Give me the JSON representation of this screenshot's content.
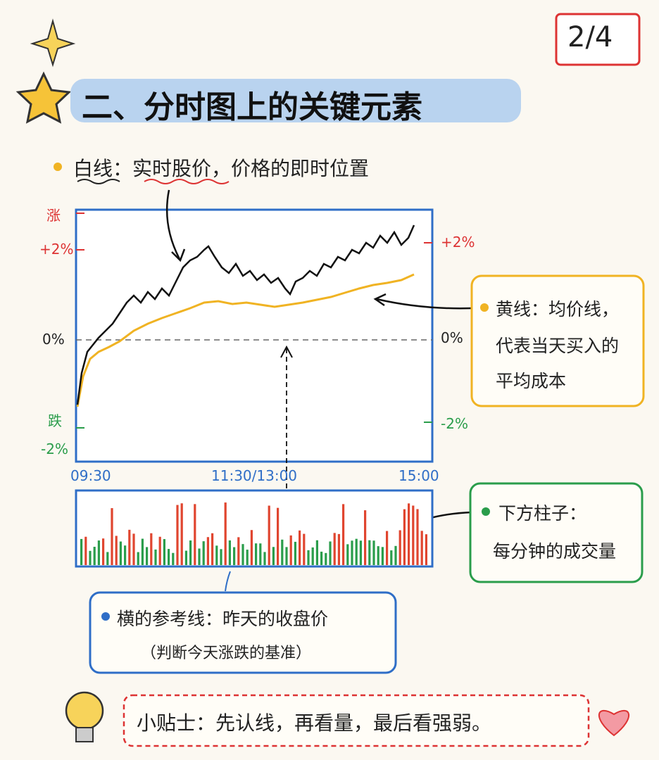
{
  "page_number": "2/4",
  "heading": "二、分时图上的关键元素",
  "white_line_note": "白线：实时股价，价格的即时位置",
  "left_axis": {
    "rise": "涨",
    "plus": "+2%",
    "zero": "0%",
    "fall": "跌",
    "minus": "-2%"
  },
  "right_axis": {
    "plus": "+2%",
    "zero": "0%",
    "minus": "-2%"
  },
  "time_axis": [
    "09:30",
    "11:30/13:00",
    "15:00"
  ],
  "yellow_note": [
    "黄线：均价线，",
    "代表当天买入的",
    "平均成本"
  ],
  "green_note": [
    "下方柱子：",
    "每分钟的成交量"
  ],
  "blue_note": [
    "横的参考线：昨天的收盘价",
    "（判断今天涨跌的基准）"
  ],
  "tip": "小贴士：先认线，再看量，最后看强弱。"
}
